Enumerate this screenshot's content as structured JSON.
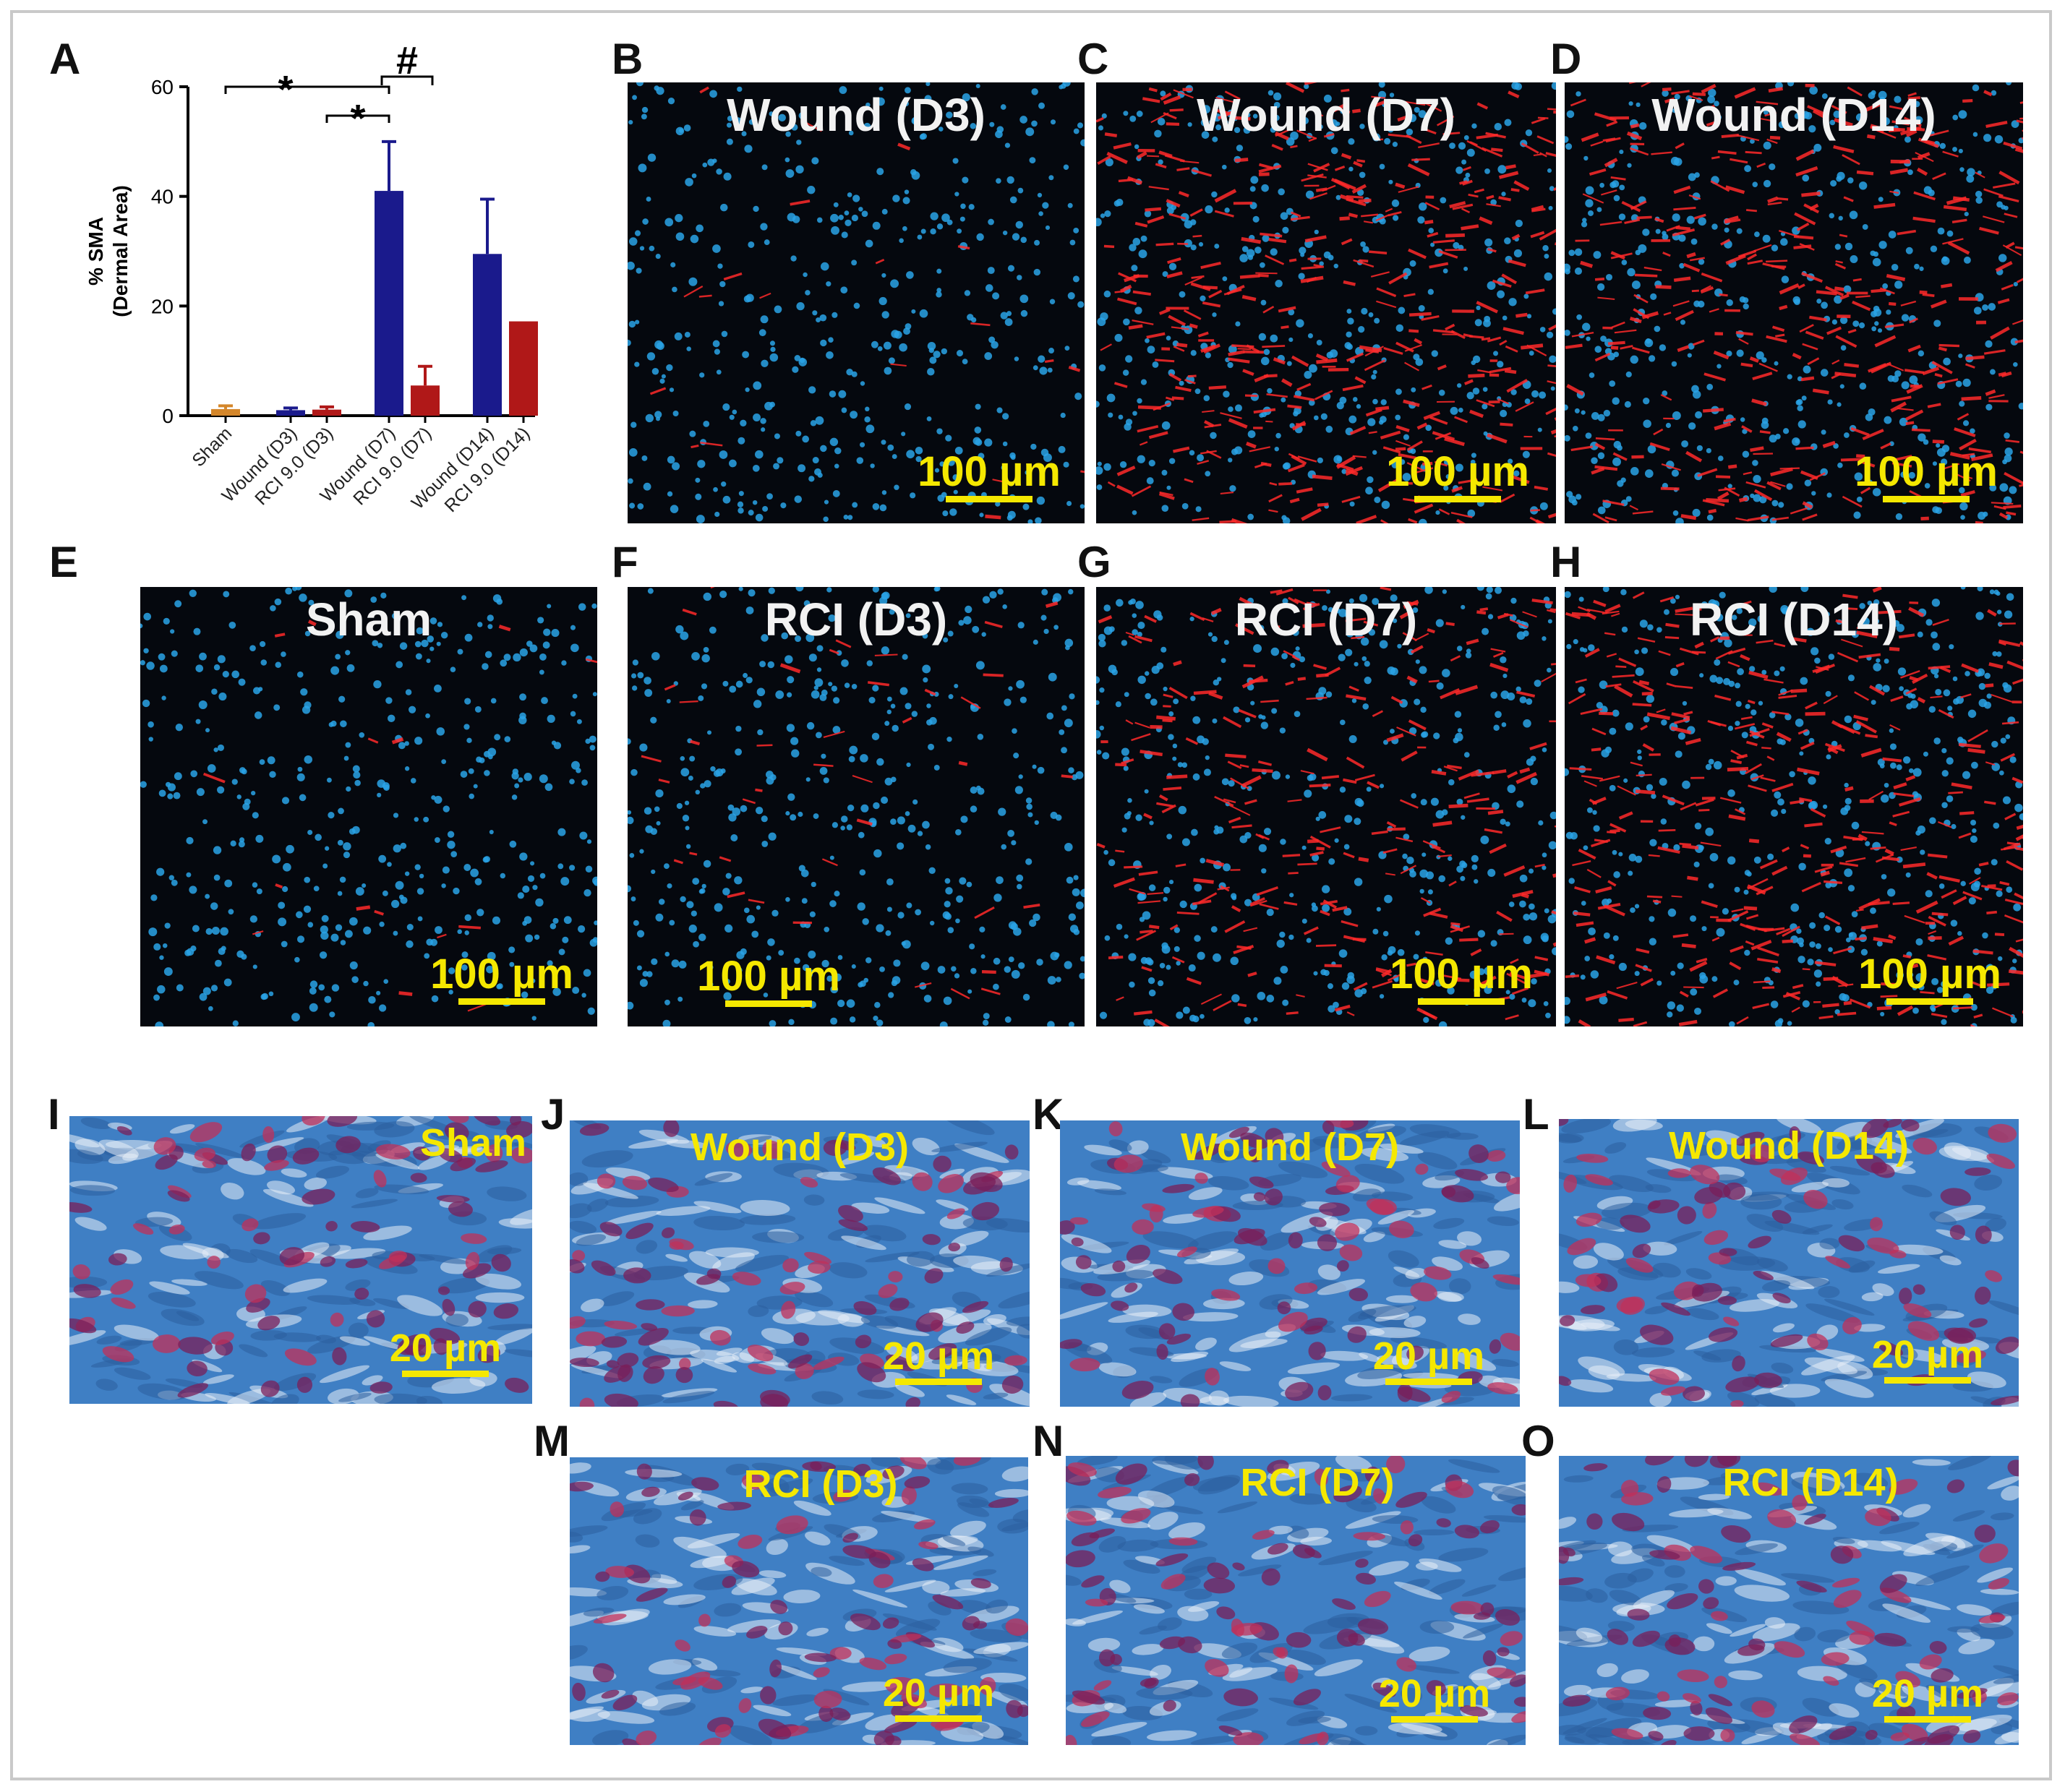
{
  "chart_data": {
    "type": "bar",
    "ylabel_line1": "% SMA",
    "ylabel_line2": "(Dermal Area)",
    "ylim": [
      0,
      60
    ],
    "yticks": [
      "0",
      "20",
      "40",
      "60"
    ],
    "categories": [
      "Sham",
      "Wound (D3)",
      "RCI 9.0 (D3)",
      "Wound (D7)",
      "RCI 9.0 (D7)",
      "Wound (D14)",
      "RCI 9.0 (D14)"
    ],
    "values": [
      1.2,
      1.0,
      1.1,
      41.0,
      5.5,
      29.5,
      17.2
    ],
    "errors": [
      0.6,
      0.4,
      0.5,
      9.0,
      3.5,
      10.0,
      0.0
    ],
    "colors": [
      "#d4862a",
      "#1a1a8c",
      "#b01818",
      "#1a1a8c",
      "#b01818",
      "#1a1a8c",
      "#b01818"
    ],
    "significance": [
      {
        "symbol": "*",
        "from": 0,
        "to": 3
      },
      {
        "symbol": "*",
        "from": 2,
        "to": 3
      },
      {
        "symbol": "#",
        "from": 3,
        "to": 4
      }
    ]
  },
  "panel_letters": {
    "A": "A",
    "B": "B",
    "C": "C",
    "D": "D",
    "E": "E",
    "F": "F",
    "G": "G",
    "H": "H",
    "I": "I",
    "J": "J",
    "K": "K",
    "L": "L",
    "M": "M",
    "N": "N",
    "O": "O"
  },
  "panels": {
    "B": {
      "title": "Wound (D3)",
      "scale": "100 µm"
    },
    "C": {
      "title": "Wound (D7)",
      "scale": "100 µm"
    },
    "D": {
      "title": "Wound (D14)",
      "scale": "100 µm"
    },
    "E": {
      "title": "Sham",
      "scale": "100 µm"
    },
    "F": {
      "title": "RCI (D3)",
      "scale": "100 µm"
    },
    "G": {
      "title": "RCI (D7)",
      "scale": "100 µm"
    },
    "H": {
      "title": "RCI (D14)",
      "scale": "100 µm"
    },
    "I": {
      "title": "Sham",
      "scale": "20 µm"
    },
    "J": {
      "title": "Wound (D3)",
      "scale": "20 µm"
    },
    "K": {
      "title": "Wound (D7)",
      "scale": "20 µm"
    },
    "L": {
      "title": "Wound (D14)",
      "scale": "20 µm"
    },
    "M": {
      "title": "RCI (D3)",
      "scale": "20 µm"
    },
    "N": {
      "title": "RCI (D7)",
      "scale": "20 µm"
    },
    "O": {
      "title": "RCI (D14)",
      "scale": "20 µm"
    }
  },
  "colors": {
    "nuclei": "#2aa3e6",
    "sma": "#ff2a2a",
    "collagen": "#3f7fc4",
    "cytoplasm": "#7a1f5a",
    "scalebar": "#f5e800"
  }
}
